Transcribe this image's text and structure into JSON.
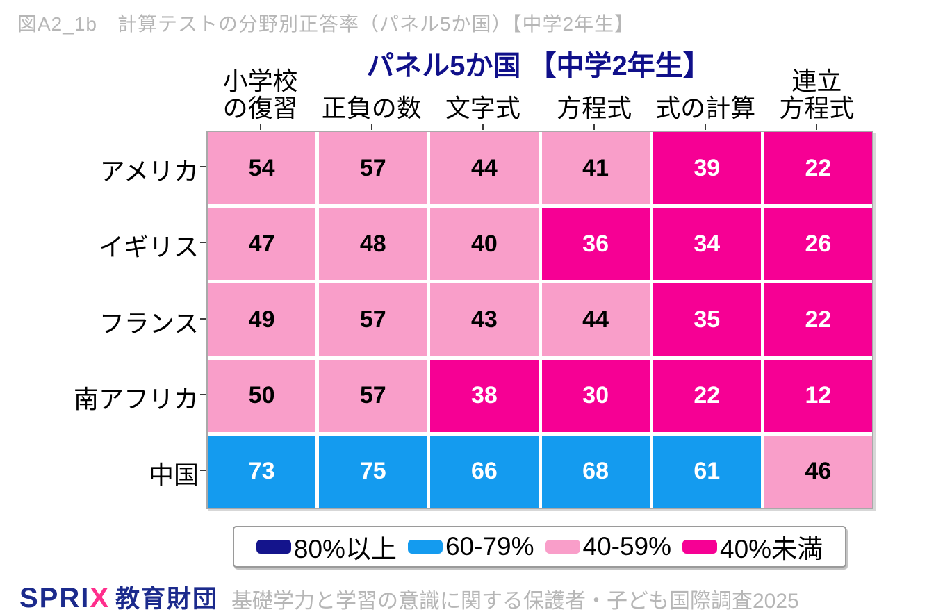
{
  "header": {
    "figure_label": "図A2_1b　計算テストの分野別正答率（パネル5か国）【中学2年生】"
  },
  "chart_data": {
    "type": "heatmap",
    "title": "パネル5か国 【中学2年生】",
    "columns": [
      "小学校\nの復習",
      "正負の数",
      "文字式",
      "方程式",
      "式の計算",
      "連立\n方程式"
    ],
    "rows": [
      "アメリカ",
      "イギリス",
      "フランス",
      "南アフリカ",
      "中国"
    ],
    "values": [
      [
        54,
        57,
        44,
        41,
        39,
        22
      ],
      [
        47,
        48,
        40,
        36,
        34,
        26
      ],
      [
        49,
        57,
        43,
        44,
        35,
        22
      ],
      [
        50,
        57,
        38,
        30,
        22,
        12
      ],
      [
        73,
        75,
        66,
        68,
        61,
        46
      ]
    ],
    "legend": [
      {
        "label": "80%以上",
        "color": "#14148c",
        "min": 80,
        "max": 101
      },
      {
        "label": "60-79%",
        "color": "#149bef",
        "min": 60,
        "max": 80
      },
      {
        "label": "40-59%",
        "color": "#f99ec9",
        "min": 40,
        "max": 60
      },
      {
        "label": "40%未満",
        "color": "#f60094",
        "min": 0,
        "max": 40
      }
    ],
    "legend_position": "bottom",
    "grid": false
  },
  "footer": {
    "logo_part1": "SPRI",
    "logo_part2": "X",
    "logo_part3": "教育財団",
    "source": "基礎学力と学習の意識に関する保護者・子ども国際調査2025"
  }
}
